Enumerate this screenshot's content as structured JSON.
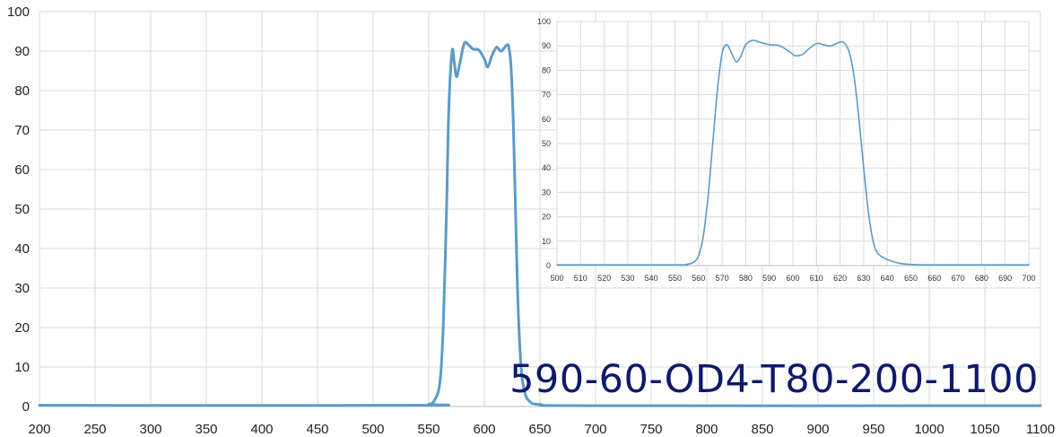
{
  "chart_data": [
    {
      "type": "line",
      "name": "full-spectrum",
      "xlim": [
        200,
        1100
      ],
      "ylim": [
        0,
        100
      ],
      "x_ticks": [
        200,
        250,
        300,
        350,
        400,
        450,
        500,
        550,
        600,
        650,
        700,
        750,
        800,
        850,
        900,
        950,
        1000,
        1050,
        1100
      ],
      "y_ticks": [
        0,
        10,
        20,
        30,
        40,
        50,
        60,
        70,
        80,
        90,
        100
      ],
      "grid": true,
      "color": "#5b9bc8",
      "points": [
        [
          200,
          0.3
        ],
        [
          540,
          0.3
        ],
        [
          550,
          0.6
        ],
        [
          555,
          1.5
        ],
        [
          560,
          6
        ],
        [
          563,
          20
        ],
        [
          566,
          50
        ],
        [
          568,
          75
        ],
        [
          571,
          90
        ],
        [
          573,
          87
        ],
        [
          575,
          83.5
        ],
        [
          578,
          87
        ],
        [
          582,
          92
        ],
        [
          586,
          91.5
        ],
        [
          590,
          90.5
        ],
        [
          595,
          90.3
        ],
        [
          600,
          88
        ],
        [
          603,
          86
        ],
        [
          607,
          89
        ],
        [
          611,
          91
        ],
        [
          615,
          90
        ],
        [
          620,
          91.5
        ],
        [
          622,
          91
        ],
        [
          624,
          86
        ],
        [
          626,
          72
        ],
        [
          628,
          50
        ],
        [
          630,
          28
        ],
        [
          633,
          10
        ],
        [
          636,
          4
        ],
        [
          640,
          1.5
        ],
        [
          650,
          0.5
        ],
        [
          700,
          0.2
        ],
        [
          1100,
          0.2
        ]
      ]
    },
    {
      "type": "line",
      "name": "passband-detail",
      "xlim": [
        500,
        700
      ],
      "ylim": [
        0,
        100
      ],
      "x_ticks": [
        500,
        510,
        520,
        530,
        540,
        550,
        560,
        570,
        580,
        590,
        600,
        610,
        620,
        630,
        640,
        650,
        660,
        670,
        680,
        690,
        700
      ],
      "y_ticks": [
        0,
        10,
        20,
        30,
        40,
        50,
        60,
        70,
        80,
        90,
        100
      ],
      "grid": true,
      "color": "#5b9bc8",
      "points": [
        [
          500,
          0.3
        ],
        [
          550,
          0.3
        ],
        [
          555,
          0.5
        ],
        [
          558,
          1.5
        ],
        [
          560,
          4
        ],
        [
          562,
          12
        ],
        [
          564,
          28
        ],
        [
          566,
          50
        ],
        [
          568,
          72
        ],
        [
          570,
          87
        ],
        [
          572,
          90.5
        ],
        [
          574,
          87
        ],
        [
          576,
          83.5
        ],
        [
          578,
          86
        ],
        [
          580,
          90.5
        ],
        [
          583,
          92.3
        ],
        [
          586,
          91.5
        ],
        [
          590,
          90.5
        ],
        [
          594,
          90.2
        ],
        [
          598,
          88
        ],
        [
          601,
          86
        ],
        [
          604,
          86.5
        ],
        [
          607,
          89
        ],
        [
          610,
          91
        ],
        [
          613,
          90.5
        ],
        [
          616,
          90
        ],
        [
          620,
          91.6
        ],
        [
          622,
          91
        ],
        [
          624,
          87
        ],
        [
          626,
          77
        ],
        [
          628,
          60
        ],
        [
          630,
          40
        ],
        [
          632,
          22
        ],
        [
          634,
          10
        ],
        [
          636,
          5
        ],
        [
          640,
          2.5
        ],
        [
          645,
          1
        ],
        [
          650,
          0.5
        ],
        [
          660,
          0.3
        ],
        [
          700,
          0.3
        ]
      ]
    }
  ],
  "product_code": "590-60-OD4-T80-200-1100"
}
